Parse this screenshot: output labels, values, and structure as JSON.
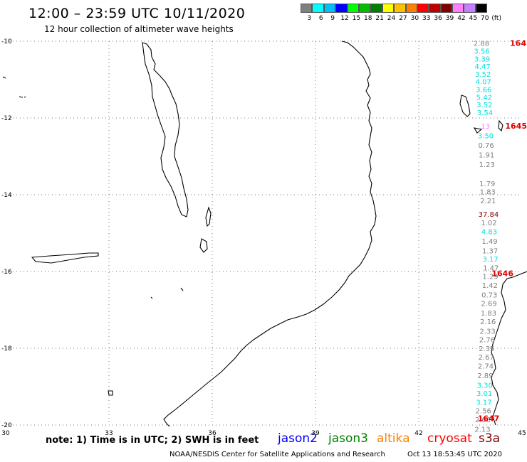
{
  "header": {
    "title": "12:00 – 23:59 UTC 10/11/2020",
    "subtitle": "12 hour collection of altimeter wave heights"
  },
  "legend": {
    "colors": [
      "#808080",
      "#00ffff",
      "#00bfff",
      "#0000ff",
      "#00ff00",
      "#00c000",
      "#008000",
      "#ffff00",
      "#ffc000",
      "#ff8000",
      "#ff0000",
      "#c00000",
      "#800000",
      "#ff80ff",
      "#c080ff",
      "#000000"
    ],
    "labels": [
      "3",
      "6",
      "9",
      "12",
      "15",
      "18",
      "21",
      "24",
      "27",
      "30",
      "33",
      "36",
      "39",
      "42",
      "45",
      "70"
    ],
    "unit": "(ft)"
  },
  "axes": {
    "lat_labels": [
      "-10",
      "-12",
      "-14",
      "-16",
      "-18",
      "-20"
    ],
    "lon_labels": [
      "30",
      "33",
      "36",
      "39",
      "42",
      "45"
    ]
  },
  "pass_labels": [
    "164",
    "1645",
    "1646",
    "1647"
  ],
  "chart_data": {
    "type": "scatter",
    "xlim": [
      30,
      45
    ],
    "ylim": [
      -20,
      -10
    ],
    "points": [
      {
        "lat": -10.05,
        "v": "2.88",
        "color": "#808080"
      },
      {
        "lat": -10.25,
        "v": "3.56",
        "color": "#00e0e0"
      },
      {
        "lat": -10.45,
        "v": "3.39",
        "color": "#00e0e0"
      },
      {
        "lat": -10.65,
        "v": "4.47",
        "color": "#00e0e0"
      },
      {
        "lat": -10.85,
        "v": "3.52",
        "color": "#00e0e0"
      },
      {
        "lat": -11.05,
        "v": "4.07",
        "color": "#00e0e0"
      },
      {
        "lat": -11.25,
        "v": "3.66",
        "color": "#00e0e0"
      },
      {
        "lat": -11.45,
        "v": "5.42",
        "color": "#00e0e0"
      },
      {
        "lat": -11.65,
        "v": "3.52",
        "color": "#00e0e0"
      },
      {
        "lat": -11.85,
        "v": "3.54",
        "color": "#00e0e0"
      },
      {
        "lat": -12.2,
        "v": "13",
        "color": "#ff80ff"
      },
      {
        "lat": -12.45,
        "v": "3.50",
        "color": "#00e0e0"
      },
      {
        "lat": -12.7,
        "v": "0.76",
        "color": "#808080"
      },
      {
        "lat": -12.95,
        "v": "1.91",
        "color": "#808080"
      },
      {
        "lat": -13.2,
        "v": "1.23",
        "color": "#808080"
      },
      {
        "lat": -13.7,
        "v": "1.79",
        "color": "#808080"
      },
      {
        "lat": -13.92,
        "v": "1.83",
        "color": "#808080"
      },
      {
        "lat": -14.15,
        "v": "2.21",
        "color": "#808080"
      },
      {
        "lat": -14.5,
        "v": "37.84",
        "color": "#800000"
      },
      {
        "lat": -14.72,
        "v": "1.02",
        "color": "#808080"
      },
      {
        "lat": -14.95,
        "v": "4.83",
        "color": "#00e0e0"
      },
      {
        "lat": -15.2,
        "v": "1.49",
        "color": "#808080"
      },
      {
        "lat": -15.45,
        "v": "1.37",
        "color": "#808080"
      },
      {
        "lat": -15.67,
        "v": "3.17",
        "color": "#00e0e0"
      },
      {
        "lat": -15.9,
        "v": "1.47",
        "color": "#808080"
      },
      {
        "lat": -16.12,
        "v": "1.29",
        "color": "#808080"
      },
      {
        "lat": -16.35,
        "v": "1.42",
        "color": "#808080"
      },
      {
        "lat": -16.6,
        "v": "0.73",
        "color": "#808080"
      },
      {
        "lat": -16.82,
        "v": "2.69",
        "color": "#808080"
      },
      {
        "lat": -17.07,
        "v": "1.83",
        "color": "#808080"
      },
      {
        "lat": -17.3,
        "v": "2.16",
        "color": "#808080"
      },
      {
        "lat": -17.55,
        "v": "2.33",
        "color": "#808080"
      },
      {
        "lat": -17.77,
        "v": "2.76",
        "color": "#808080"
      },
      {
        "lat": -18.0,
        "v": "2.35",
        "color": "#808080"
      },
      {
        "lat": -18.22,
        "v": "2.67",
        "color": "#808080"
      },
      {
        "lat": -18.45,
        "v": "2.74",
        "color": "#808080"
      },
      {
        "lat": -18.7,
        "v": "2.89",
        "color": "#808080"
      },
      {
        "lat": -18.95,
        "v": "3.30",
        "color": "#00e0e0"
      },
      {
        "lat": -19.17,
        "v": "3.01",
        "color": "#00e0e0"
      },
      {
        "lat": -19.4,
        "v": "3.17",
        "color": "#00e0e0"
      },
      {
        "lat": -19.62,
        "v": "2.56",
        "color": "#808080"
      },
      {
        "lat": -19.85,
        "v": "2.00",
        "color": "#808080"
      },
      {
        "lat": -20.1,
        "v": "2.13",
        "color": "#808080"
      }
    ]
  },
  "note": "note: 1) Time is in UTC; 2) SWH is in feet",
  "satellites": [
    {
      "name": "jason2",
      "color": "#0000ff"
    },
    {
      "name": "jason3",
      "color": "#008000"
    },
    {
      "name": "altika",
      "color": "#ff8000"
    },
    {
      "name": "cryosat",
      "color": "#ff0000"
    },
    {
      "name": "s3a",
      "color": "#800000"
    }
  ],
  "footer": {
    "credit": "NOAA/NESDIS Center for Satellite Applications and Research",
    "timestamp": "Oct 13 18:53:45 UTC 2020"
  }
}
